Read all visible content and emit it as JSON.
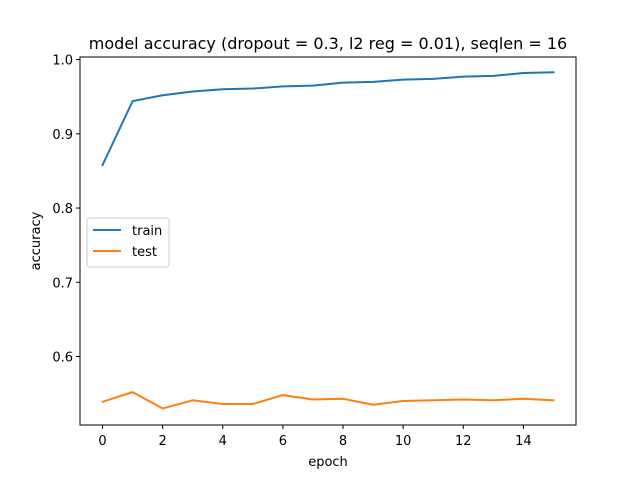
{
  "chart_data": {
    "type": "line",
    "title": "model accuracy (dropout = 0.3, l2 reg = 0.01), seqlen = 16",
    "xlabel": "epoch",
    "ylabel": "accuracy",
    "x": [
      0,
      1,
      2,
      3,
      4,
      5,
      6,
      7,
      8,
      9,
      10,
      11,
      12,
      13,
      14,
      15
    ],
    "xlim": [
      -0.75,
      15.75
    ],
    "ylim": [
      0.5077,
      1.0035
    ],
    "xticks": [
      0,
      2,
      4,
      6,
      8,
      10,
      12,
      14
    ],
    "yticks": [
      0.6,
      0.7,
      0.8,
      0.9,
      1.0
    ],
    "xtick_labels": [
      "0",
      "2",
      "4",
      "6",
      "8",
      "10",
      "12",
      "14"
    ],
    "ytick_labels": [
      "0.6",
      "0.7",
      "0.8",
      "0.9",
      "1.0"
    ],
    "grid": false,
    "legend_position": "center-left",
    "series": [
      {
        "name": "train",
        "color": "#1f77b4",
        "values": [
          0.858,
          0.944,
          0.952,
          0.957,
          0.96,
          0.961,
          0.964,
          0.965,
          0.969,
          0.97,
          0.973,
          0.974,
          0.977,
          0.978,
          0.982,
          0.983
        ]
      },
      {
        "name": "test",
        "color": "#ff7f0e",
        "values": [
          0.539,
          0.552,
          0.53,
          0.541,
          0.536,
          0.536,
          0.548,
          0.542,
          0.543,
          0.535,
          0.54,
          0.541,
          0.542,
          0.541,
          0.543,
          0.541
        ]
      }
    ]
  }
}
